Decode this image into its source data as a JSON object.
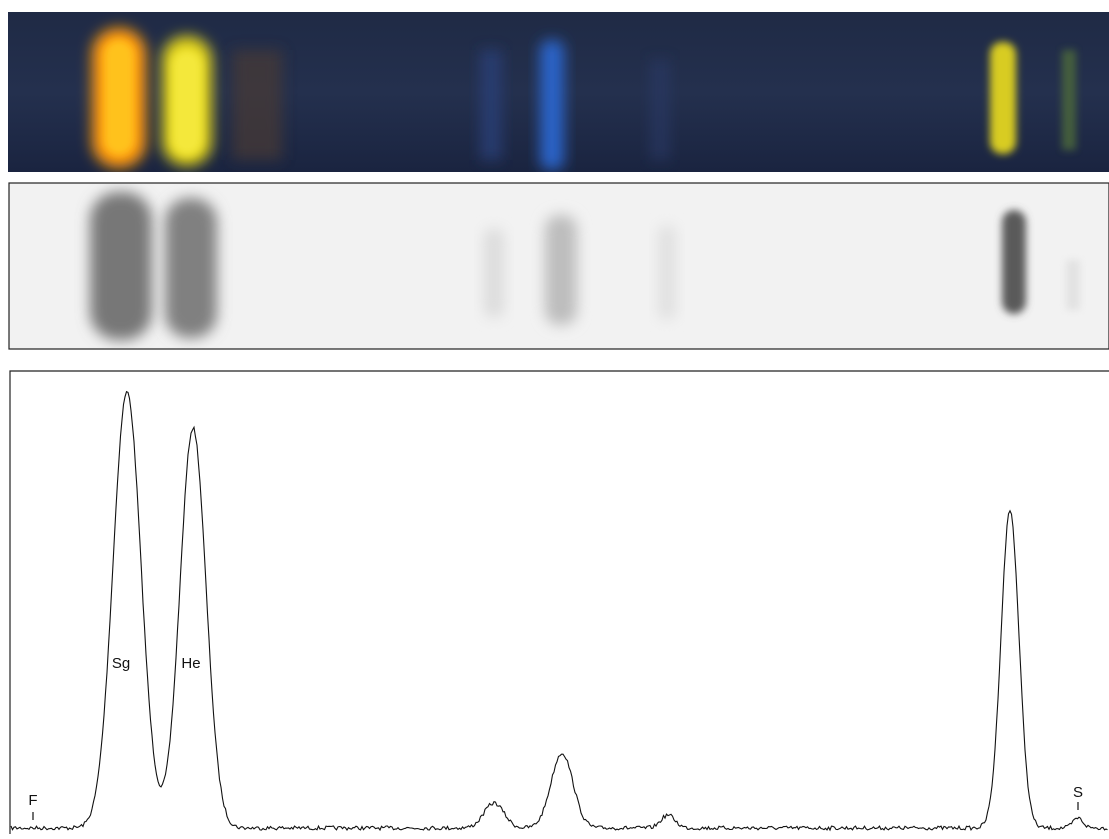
{
  "labels": {
    "front": "F",
    "start": "S",
    "peak_1": "Sg",
    "peak_2": "He"
  }
}
